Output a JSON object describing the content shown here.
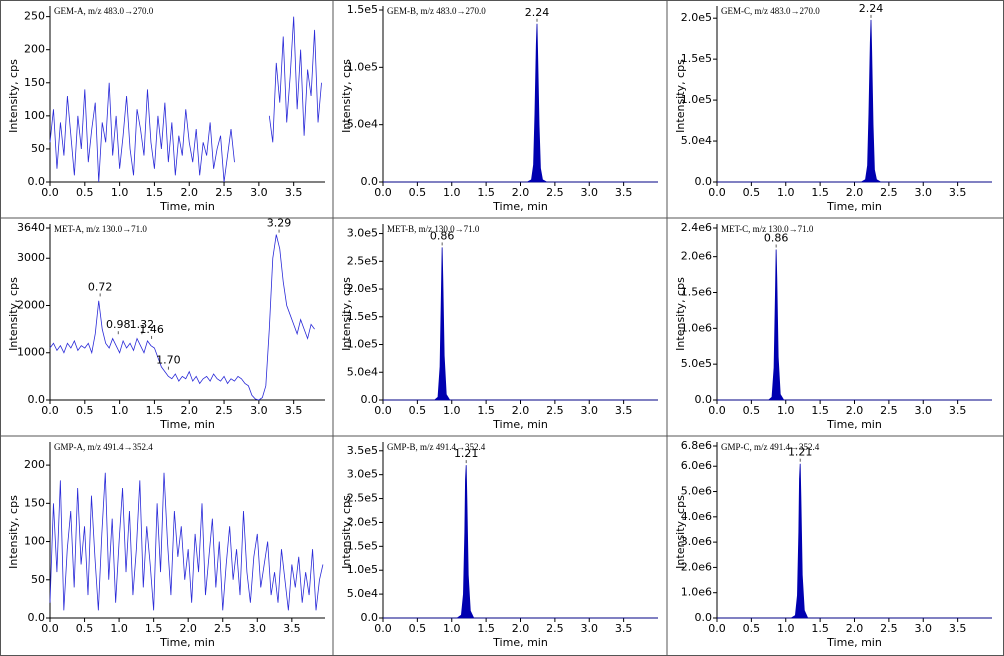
{
  "chart_data": [
    {
      "type": "line",
      "title": "GEM-A, m/z 483.0→270.0",
      "x_label": "Time, min",
      "y_label": "Intensity, cps",
      "color": "#2a2ad8",
      "x": [
        0,
        0.05,
        0.1,
        0.15,
        0.2,
        0.25,
        0.3,
        0.35,
        0.4,
        0.45,
        0.5,
        0.55,
        0.6,
        0.65,
        0.7,
        0.75,
        0.8,
        0.85,
        0.9,
        0.95,
        1,
        1.05,
        1.1,
        1.15,
        1.2,
        1.25,
        1.3,
        1.35,
        1.4,
        1.45,
        1.5,
        1.55,
        1.6,
        1.65,
        1.7,
        1.75,
        1.8,
        1.85,
        1.9,
        1.95,
        2,
        2.05,
        2.1,
        2.15,
        2.2,
        2.25,
        2.3,
        2.35,
        2.4,
        2.45,
        2.5,
        2.55,
        2.6,
        2.65,
        2.7,
        2.75,
        2.8,
        2.85,
        2.9,
        2.95,
        3,
        3.05,
        3.1,
        3.15,
        3.2,
        3.25,
        3.3,
        3.35,
        3.4,
        3.45,
        3.5,
        3.55,
        3.6,
        3.65,
        3.7,
        3.75,
        3.8,
        3.85,
        3.9
      ],
      "values": [
        60,
        110,
        20,
        90,
        40,
        130,
        70,
        10,
        100,
        50,
        140,
        30,
        80,
        120,
        0,
        90,
        60,
        150,
        40,
        100,
        20,
        70,
        130,
        50,
        10,
        110,
        80,
        40,
        140,
        60,
        20,
        100,
        50,
        120,
        30,
        90,
        10,
        70,
        40,
        110,
        60,
        30,
        80,
        10,
        60,
        40,
        90,
        20,
        50,
        70,
        0,
        40,
        80,
        30,
        null,
        null,
        null,
        null,
        null,
        null,
        null,
        null,
        null,
        100,
        60,
        180,
        120,
        220,
        90,
        160,
        250,
        110,
        200,
        70,
        170,
        130,
        230,
        90,
        150
      ],
      "xlim": [
        0,
        3.95
      ],
      "ylim": [
        0,
        260
      ],
      "xticks": [
        {
          "value": 0,
          "label": "0.0"
        },
        0.5,
        {
          "value": 1,
          "label": "1.0"
        },
        1.5,
        {
          "value": 2,
          "label": "2.0"
        },
        2.5,
        {
          "value": 3,
          "label": "3.0"
        },
        3.5
      ],
      "yticks": [
        {
          "value": 0,
          "label": "0.0"
        },
        50,
        100,
        150,
        200,
        250
      ],
      "annotations": []
    },
    {
      "type": "area",
      "title": "GEM-B, m/z 483.0→270.0",
      "x_label": "Time, min",
      "y_label": "Intensity, cps",
      "color": "#0000b0",
      "x": [
        0,
        2.1,
        2.16,
        2.19,
        2.21,
        2.23,
        2.24,
        2.25,
        2.27,
        2.29,
        2.32,
        2.38,
        4.0
      ],
      "values": [
        0,
        0,
        2000,
        15000,
        60000,
        120000,
        138000,
        110000,
        50000,
        12000,
        2000,
        0,
        0
      ],
      "xlim": [
        0,
        4.0
      ],
      "ylim": [
        0,
        150000
      ],
      "xticks": [
        {
          "value": 0,
          "label": "0.0"
        },
        0.5,
        {
          "value": 1,
          "label": "1.0"
        },
        1.5,
        {
          "value": 2,
          "label": "2.0"
        },
        2.5,
        {
          "value": 3,
          "label": "3.0"
        },
        3.5
      ],
      "yticks": [
        {
          "value": 0,
          "label": "0.0"
        },
        {
          "value": 50000,
          "label": "5.0e4"
        },
        {
          "value": 100000,
          "label": "1.0e5"
        },
        {
          "value": 150000,
          "label": "1.5e5"
        }
      ],
      "annotations": [
        {
          "x": 2.24,
          "y": 138000,
          "label": "2.24"
        }
      ]
    },
    {
      "type": "area",
      "title": "GEM-C, m/z 483.0→270.0",
      "x_label": "Time, min",
      "y_label": "Intensity, cps",
      "color": "#0000b0",
      "x": [
        0,
        2.1,
        2.16,
        2.19,
        2.21,
        2.23,
        2.24,
        2.25,
        2.27,
        2.29,
        2.32,
        2.38,
        4.0
      ],
      "values": [
        0,
        0,
        3000,
        20000,
        85000,
        170000,
        198000,
        160000,
        70000,
        15000,
        3000,
        0,
        0
      ],
      "xlim": [
        0,
        4.0
      ],
      "ylim": [
        0,
        210000
      ],
      "xticks": [
        {
          "value": 0,
          "label": "0.0"
        },
        0.5,
        {
          "value": 1,
          "label": "1.0"
        },
        1.5,
        {
          "value": 2,
          "label": "2.0"
        },
        2.5,
        {
          "value": 3,
          "label": "3.0"
        },
        3.5
      ],
      "yticks": [
        {
          "value": 0,
          "label": "0.0"
        },
        {
          "value": 50000,
          "label": "5.0e4"
        },
        {
          "value": 100000,
          "label": "1.0e5"
        },
        {
          "value": 150000,
          "label": "1.5e5"
        },
        {
          "value": 200000,
          "label": "2.0e5"
        }
      ],
      "annotations": [
        {
          "x": 2.24,
          "y": 198000,
          "label": "2.24"
        }
      ]
    },
    {
      "type": "line",
      "title": "MET-A, m/z 130.0→71.0",
      "x_label": "Time, min",
      "y_label": "Intensity, cps",
      "color": "#2a2ad8",
      "x": [
        0,
        0.05,
        0.1,
        0.15,
        0.2,
        0.25,
        0.3,
        0.35,
        0.4,
        0.45,
        0.5,
        0.55,
        0.6,
        0.65,
        0.7,
        0.75,
        0.8,
        0.85,
        0.9,
        0.95,
        1,
        1.05,
        1.1,
        1.15,
        1.2,
        1.25,
        1.3,
        1.35,
        1.4,
        1.45,
        1.5,
        1.55,
        1.6,
        1.65,
        1.7,
        1.75,
        1.8,
        1.85,
        1.9,
        1.95,
        2,
        2.05,
        2.1,
        2.15,
        2.2,
        2.25,
        2.3,
        2.35,
        2.4,
        2.45,
        2.5,
        2.55,
        2.6,
        2.65,
        2.7,
        2.75,
        2.8,
        2.85,
        2.9,
        2.95,
        3,
        3.05,
        3.1,
        3.15,
        3.2,
        3.25,
        3.3,
        3.35,
        3.4,
        3.45,
        3.5,
        3.55,
        3.6,
        3.65,
        3.7,
        3.75,
        3.8
      ],
      "values": [
        1100,
        1200,
        1050,
        1150,
        1000,
        1200,
        1100,
        1250,
        1050,
        1150,
        1100,
        1200,
        1000,
        1400,
        2100,
        1500,
        1200,
        1100,
        1300,
        1150,
        1000,
        1250,
        1100,
        1200,
        1050,
        1300,
        1150,
        1000,
        1250,
        1150,
        1100,
        900,
        700,
        600,
        500,
        450,
        550,
        400,
        500,
        450,
        600,
        400,
        500,
        350,
        450,
        500,
        400,
        550,
        450,
        400,
        500,
        350,
        450,
        400,
        500,
        450,
        350,
        300,
        100,
        20,
        0,
        50,
        300,
        1500,
        3000,
        3500,
        3200,
        2500,
        2000,
        1800,
        1600,
        1400,
        1700,
        1500,
        1300,
        1600,
        1500
      ],
      "xlim": [
        0,
        3.95
      ],
      "ylim": [
        0,
        3640
      ],
      "xticks": [
        {
          "value": 0,
          "label": "0.0"
        },
        0.5,
        {
          "value": 1,
          "label": "1.0"
        },
        1.5,
        {
          "value": 2,
          "label": "2.0"
        },
        2.5,
        {
          "value": 3,
          "label": "3.0"
        },
        3.5
      ],
      "yticks": [
        {
          "value": 0,
          "label": "0.0"
        },
        1000,
        2000,
        3000,
        3640
      ],
      "annotations": [
        {
          "x": 0.72,
          "y": 2150,
          "label": "0.72"
        },
        {
          "x": 0.98,
          "y": 1350,
          "label": "0.98"
        },
        {
          "x": 1.32,
          "y": 1350,
          "label": "1.32"
        },
        {
          "x": 1.46,
          "y": 1250,
          "label": "1.46"
        },
        {
          "x": 1.7,
          "y": 600,
          "label": "1.70"
        },
        {
          "x": 3.29,
          "y": 3500,
          "label": "3.29"
        }
      ]
    },
    {
      "type": "area",
      "title": "MET-B, m/z 130.0→71.0",
      "x_label": "Time, min",
      "y_label": "Intensity, cps",
      "color": "#0000b0",
      "x": [
        0,
        0.75,
        0.8,
        0.83,
        0.85,
        0.86,
        0.87,
        0.89,
        0.92,
        0.97,
        4.0
      ],
      "values": [
        0,
        0,
        5000,
        60000,
        200000,
        275000,
        220000,
        80000,
        10000,
        0,
        0
      ],
      "xlim": [
        0,
        4.0
      ],
      "ylim": [
        0,
        310000
      ],
      "xticks": [
        {
          "value": 0,
          "label": "0.0"
        },
        0.5,
        {
          "value": 1,
          "label": "1.0"
        },
        1.5,
        {
          "value": 2,
          "label": "2.0"
        },
        2.5,
        {
          "value": 3,
          "label": "3.0"
        },
        3.5
      ],
      "yticks": [
        {
          "value": 0,
          "label": "0.0"
        },
        {
          "value": 50000,
          "label": "5.0e4"
        },
        {
          "value": 100000,
          "label": "1.0e5"
        },
        {
          "value": 150000,
          "label": "1.5e5"
        },
        {
          "value": 200000,
          "label": "2.0e5"
        },
        {
          "value": 250000,
          "label": "2.5e5"
        },
        {
          "value": 300000,
          "label": "3.0e5"
        }
      ],
      "annotations": [
        {
          "x": 0.86,
          "y": 275000,
          "label": "0.86"
        }
      ]
    },
    {
      "type": "area",
      "title": "MET-C, m/z 130.0→71.0",
      "x_label": "Time, min",
      "y_label": "Intensity, cps",
      "color": "#0000b0",
      "x": [
        0,
        0.75,
        0.8,
        0.83,
        0.85,
        0.86,
        0.87,
        0.89,
        0.92,
        0.97,
        4.0
      ],
      "values": [
        0,
        0,
        40000,
        450000,
        1500000,
        2100000,
        1700000,
        600000,
        80000,
        0,
        0
      ],
      "xlim": [
        0,
        4.0
      ],
      "ylim": [
        0,
        2400000
      ],
      "xticks": [
        {
          "value": 0,
          "label": "0.0"
        },
        0.5,
        {
          "value": 1,
          "label": "1.0"
        },
        1.5,
        {
          "value": 2,
          "label": "2.0"
        },
        2.5,
        {
          "value": 3,
          "label": "3.0"
        },
        3.5
      ],
      "yticks": [
        {
          "value": 0,
          "label": "0.0"
        },
        {
          "value": 500000,
          "label": "5.0e5"
        },
        {
          "value": 1000000,
          "label": "1.0e6"
        },
        {
          "value": 1500000,
          "label": "1.5e6"
        },
        {
          "value": 2000000,
          "label": "2.0e6"
        },
        {
          "value": 2400000,
          "label": "2.4e6"
        }
      ],
      "annotations": [
        {
          "x": 0.86,
          "y": 2100000,
          "label": "0.86"
        }
      ]
    },
    {
      "type": "line",
      "title": "GMP-A, m/z 491.4→352.4",
      "x_label": "Time, min",
      "y_label": "Intensity, cps",
      "color": "#2a2ad8",
      "x": [
        0,
        0.05,
        0.1,
        0.15,
        0.2,
        0.25,
        0.3,
        0.35,
        0.4,
        0.45,
        0.5,
        0.55,
        0.6,
        0.65,
        0.7,
        0.75,
        0.8,
        0.85,
        0.9,
        0.95,
        1,
        1.05,
        1.1,
        1.15,
        1.2,
        1.25,
        1.3,
        1.35,
        1.4,
        1.45,
        1.5,
        1.55,
        1.6,
        1.65,
        1.7,
        1.75,
        1.8,
        1.85,
        1.9,
        1.95,
        2,
        2.05,
        2.1,
        2.15,
        2.2,
        2.25,
        2.3,
        2.35,
        2.4,
        2.45,
        2.5,
        2.55,
        2.6,
        2.65,
        2.7,
        2.75,
        2.8,
        2.85,
        2.9,
        2.95,
        3,
        3.05,
        3.1,
        3.15,
        3.2,
        3.25,
        3.3,
        3.35,
        3.4,
        3.45,
        3.5,
        3.55,
        3.6,
        3.65,
        3.7,
        3.75,
        3.8,
        3.85,
        3.9,
        3.95
      ],
      "values": [
        20,
        150,
        60,
        180,
        10,
        90,
        140,
        40,
        170,
        70,
        120,
        30,
        160,
        80,
        10,
        110,
        190,
        50,
        130,
        20,
        100,
        170,
        60,
        140,
        30,
        90,
        180,
        40,
        120,
        70,
        10,
        150,
        60,
        190,
        100,
        30,
        140,
        80,
        120,
        50,
        90,
        20,
        110,
        60,
        150,
        30,
        80,
        130,
        40,
        100,
        10,
        70,
        120,
        50,
        90,
        30,
        140,
        60,
        20,
        80,
        110,
        40,
        70,
        100,
        30,
        60,
        20,
        90,
        50,
        10,
        70,
        40,
        80,
        20,
        60,
        30,
        90,
        10,
        50,
        70
      ],
      "xlim": [
        0,
        3.98
      ],
      "ylim": [
        0,
        225
      ],
      "xticks": [
        {
          "value": 0,
          "label": "0.0"
        },
        0.5,
        {
          "value": 1,
          "label": "1.0"
        },
        1.5,
        {
          "value": 2,
          "label": "2.0"
        },
        2.5,
        {
          "value": 3,
          "label": "3.0"
        },
        3.5
      ],
      "yticks": [
        {
          "value": 0,
          "label": "0.0"
        },
        50,
        100,
        150,
        200
      ],
      "annotations": []
    },
    {
      "type": "area",
      "title": "GMP-B, m/z 491.4→352.4",
      "x_label": "Time, min",
      "y_label": "Intensity, cps",
      "color": "#0000b0",
      "x": [
        0,
        1.08,
        1.14,
        1.17,
        1.19,
        1.2,
        1.21,
        1.22,
        1.24,
        1.27,
        1.32,
        4.0
      ],
      "values": [
        0,
        0,
        6000,
        50000,
        180000,
        290000,
        320000,
        250000,
        90000,
        15000,
        0,
        0
      ],
      "xlim": [
        0,
        4.0
      ],
      "ylim": [
        0,
        360000
      ],
      "xticks": [
        {
          "value": 0,
          "label": "0.0"
        },
        0.5,
        {
          "value": 1,
          "label": "1.0"
        },
        1.5,
        {
          "value": 2,
          "label": "2.0"
        },
        2.5,
        {
          "value": 3,
          "label": "3.0"
        },
        3.5
      ],
      "yticks": [
        {
          "value": 0,
          "label": "0.0"
        },
        {
          "value": 50000,
          "label": "5.0e4"
        },
        {
          "value": 100000,
          "label": "1.0e5"
        },
        {
          "value": 150000,
          "label": "1.5e5"
        },
        {
          "value": 200000,
          "label": "2.0e5"
        },
        {
          "value": 250000,
          "label": "2.5e5"
        },
        {
          "value": 300000,
          "label": "3.0e5"
        },
        {
          "value": 350000,
          "label": "3.5e5"
        }
      ],
      "annotations": [
        {
          "x": 1.21,
          "y": 320000,
          "label": "1.21"
        }
      ]
    },
    {
      "type": "area",
      "title": "GMP-C, m/z 491.4→352.4",
      "x_label": "Time, min",
      "y_label": "Intensity, cps",
      "color": "#0000b0",
      "x": [
        0,
        1.08,
        1.14,
        1.17,
        1.19,
        1.2,
        1.21,
        1.22,
        1.24,
        1.27,
        1.32,
        4.0
      ],
      "values": [
        0,
        0,
        100000,
        900000,
        3400000,
        5500000,
        6100000,
        4800000,
        1700000,
        300000,
        0,
        0
      ],
      "xlim": [
        0,
        4.0
      ],
      "ylim": [
        0,
        6800000
      ],
      "xticks": [
        {
          "value": 0,
          "label": "0.0"
        },
        0.5,
        {
          "value": 1,
          "label": "1.0"
        },
        1.5,
        {
          "value": 2,
          "label": "2.0"
        },
        2.5,
        {
          "value": 3,
          "label": "3.0"
        },
        3.5
      ],
      "yticks": [
        {
          "value": 0,
          "label": "0.0"
        },
        {
          "value": 1000000,
          "label": "1.0e6"
        },
        {
          "value": 2000000,
          "label": "2.0e6"
        },
        {
          "value": 3000000,
          "label": "3.0e6"
        },
        {
          "value": 4000000,
          "label": "4.0e6"
        },
        {
          "value": 5000000,
          "label": "5.0e6"
        },
        {
          "value": 6000000,
          "label": "6.0e6"
        },
        {
          "value": 6800000,
          "label": "6.8e6"
        }
      ],
      "annotations": [
        {
          "x": 1.21,
          "y": 6100000,
          "label": "1.21"
        }
      ]
    }
  ]
}
